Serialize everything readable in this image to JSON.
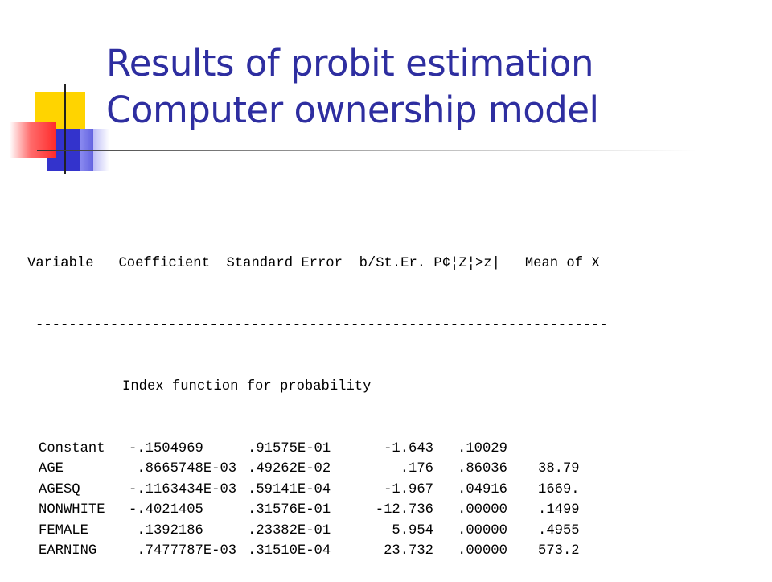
{
  "slide": {
    "title_line1": "Results of probit estimation",
    "title_line2": "Computer ownership model"
  },
  "output": {
    "header": "Variable   Coefficient  Standard Error  b/St.Er. P¢¦Z¦>z|   Mean of X",
    "separator": "---------------------------------------------------------------------",
    "section": "Index function for probability",
    "rows": [
      {
        "variable": "Constant",
        "coefficient": "-.1504969",
        "std_error": ".91575E-01",
        "b_st_er": "-1.643",
        "p_value": ".10029",
        "mean_x": ""
      },
      {
        "variable": "AGE",
        "coefficient": ".8665748E-03",
        "std_error": ".49262E-02",
        "b_st_er": ".176",
        "p_value": ".86036",
        "mean_x": "38.79"
      },
      {
        "variable": "AGESQ",
        "coefficient": "-.1163434E-03",
        "std_error": ".59141E-04",
        "b_st_er": "-1.967",
        "p_value": ".04916",
        "mean_x": "1669."
      },
      {
        "variable": "NONWHITE",
        "coefficient": "-.4021405",
        "std_error": ".31576E-01",
        "b_st_er": "-12.736",
        "p_value": ".00000",
        "mean_x": ".1499"
      },
      {
        "variable": "FEMALE",
        "coefficient": ".1392186",
        "std_error": ".23382E-01",
        "b_st_er": "5.954",
        "p_value": ".00000",
        "mean_x": ".4955"
      },
      {
        "variable": "EARNING",
        "coefficient": ".7477787E-03",
        "std_error": ".31510E-04",
        "b_st_er": "23.732",
        "p_value": ".00000",
        "mean_x": "573.2"
      }
    ]
  }
}
